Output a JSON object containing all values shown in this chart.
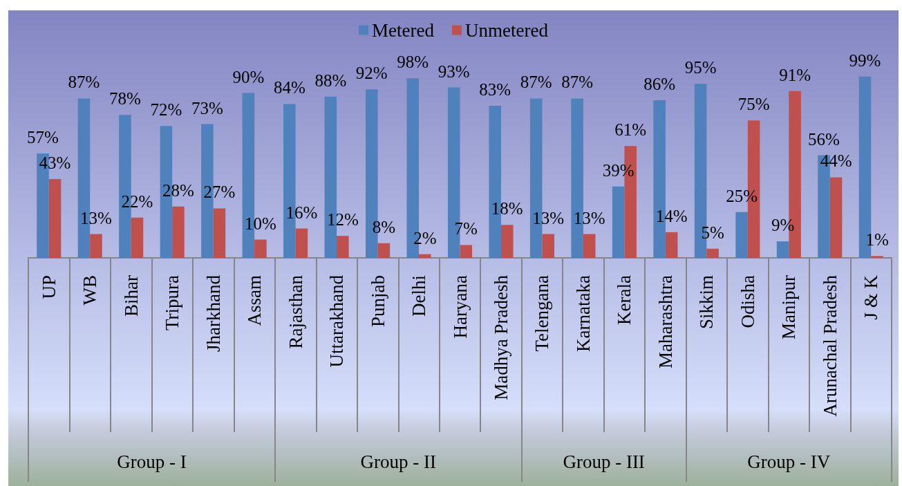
{
  "chart_data": {
    "type": "bar",
    "categories": [
      "UP",
      "WB",
      "Bihar",
      "Tripura",
      "Jharkhand",
      "Assam",
      "Rajasthan",
      "Uttarakhand",
      "Punjab",
      "Delhi",
      "Haryana",
      "Madhya Pradesh",
      "Telengana",
      "Karnataka",
      "Kerala",
      "Maharashtra",
      "Sikkim",
      "Odisha",
      "Manipur",
      "Arunachal Pradesh",
      "J & K"
    ],
    "series": [
      {
        "name": "Metered",
        "color": "#4f81bd",
        "values": [
          57,
          87,
          78,
          72,
          73,
          90,
          84,
          88,
          92,
          98,
          93,
          83,
          87,
          87,
          39,
          86,
          95,
          25,
          9,
          56,
          99
        ],
        "value_labels": [
          "57%",
          "87%",
          "78%",
          "72%",
          "73%",
          "90%",
          "84%",
          "88%",
          "92%",
          "98%",
          "93%",
          "83%",
          "87%",
          "87%",
          "39%",
          "86%",
          "95%",
          "25%",
          "9%",
          "56%",
          "99%"
        ]
      },
      {
        "name": "Unmetered",
        "color": "#c0504d",
        "values": [
          43,
          13,
          22,
          28,
          27,
          10,
          16,
          12,
          8,
          2,
          7,
          18,
          13,
          13,
          61,
          14,
          5,
          75,
          91,
          44,
          1
        ],
        "value_labels": [
          "43%",
          "13%",
          "22%",
          "28%",
          "27%",
          "10%",
          "16%",
          "12%",
          "8%",
          "2%",
          "7%",
          "18%",
          "13%",
          "13%",
          "61%",
          "14%",
          "5%",
          "75%",
          "91%",
          "44%",
          "1%"
        ]
      }
    ],
    "legend": "top",
    "tick_labels": "x",
    "annotations": [
      "Group - I",
      "Group - II",
      "Group - III",
      "Group - IV"
    ]
  }
}
